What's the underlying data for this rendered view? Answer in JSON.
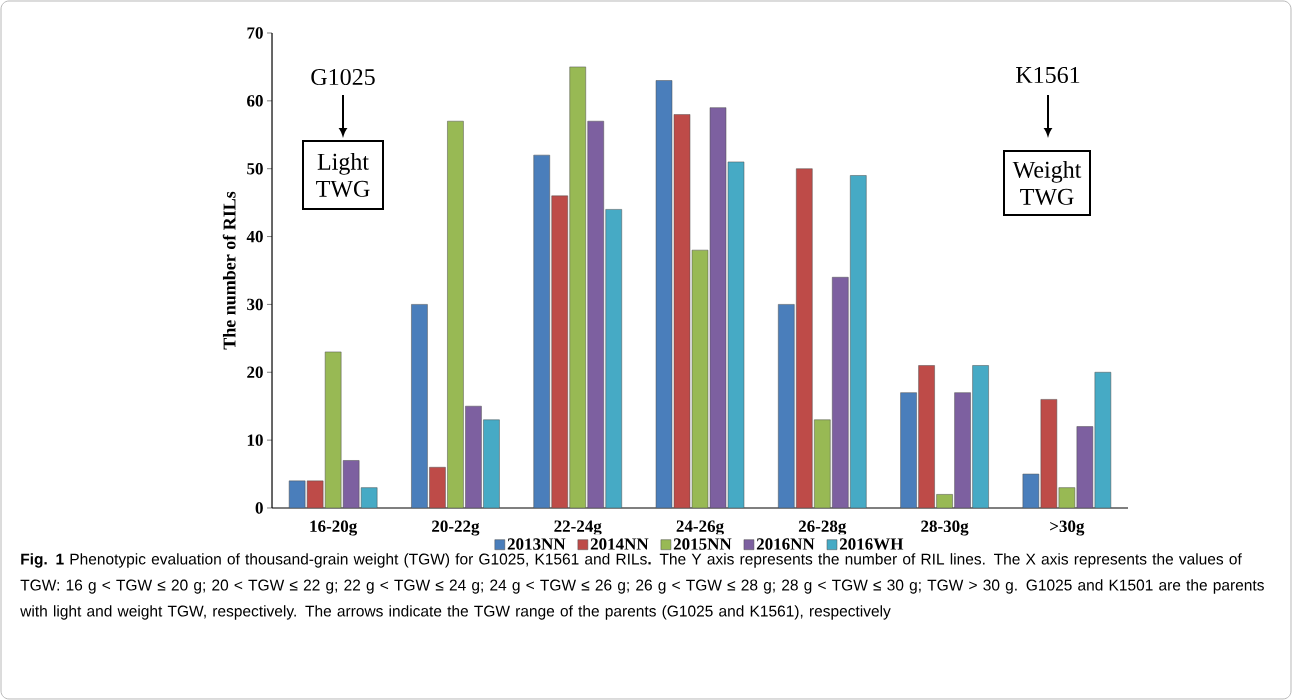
{
  "chart_data": {
    "type": "bar",
    "ylabel": "The number of RILs",
    "categories": [
      "16-20g",
      "20-22g",
      "22-24g",
      "24-26g",
      "26-28g",
      "28-30g",
      ">30g"
    ],
    "series": [
      {
        "name": "2013NN",
        "color": "#4a7ebb",
        "values": [
          4,
          30,
          52,
          63,
          30,
          17,
          5
        ]
      },
      {
        "name": "2014NN",
        "color": "#be4b48",
        "values": [
          4,
          6,
          46,
          58,
          50,
          21,
          16
        ]
      },
      {
        "name": "2015NN",
        "color": "#98b954",
        "values": [
          23,
          57,
          65,
          38,
          13,
          2,
          3
        ]
      },
      {
        "name": "2016NN",
        "color": "#7d60a0",
        "values": [
          7,
          15,
          57,
          59,
          34,
          17,
          12
        ]
      },
      {
        "name": "2016WH",
        "color": "#46aac5",
        "values": [
          3,
          13,
          44,
          51,
          49,
          21,
          20
        ]
      }
    ],
    "ylim": [
      0,
      70
    ],
    "yticks": [
      0,
      10,
      20,
      30,
      40,
      50,
      60,
      70
    ],
    "grid": false,
    "legend": "bottom",
    "annotations": [
      "G1025",
      "Light TWG",
      "K1561",
      "Weight TWG",
      "**Fig. 1** Phenotypic evaluation of thousand-grain weight (TGW) for G1025, K1561 and RILs**.** The Y axis represents the number of RIL lines. The X axis represents the values of TGW: 16 g < TGW ≤ 20 g; 20 < TGW ≤ 22 g; 22 g < TGW ≤ 24 g; 24 g < TGW ≤ 26 g; 26 g < TGW ≤ 28 g; 28 g < TGW ≤ 30 g; TGW > 30 g. G1025 and K1501 are the parents with light and weight TGW, respectively. The arrows indicate the TGW range of the parents (G1025 and K1561), respectively"
    ]
  }
}
